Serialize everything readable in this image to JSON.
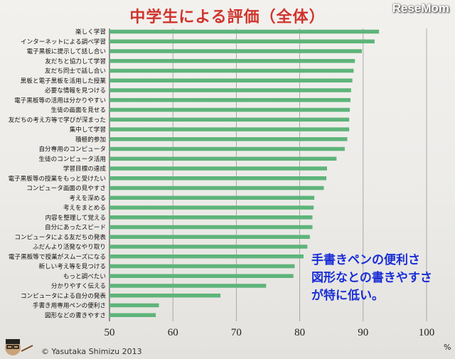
{
  "title": "中学生による評価（全体）",
  "brand": "ReseMom",
  "annotation": "手書きペンの便利さ\n図形なとの書きやすさ\nが特に低い。",
  "unit": "%",
  "copyright": "© Yasutaka Shimizu 2013",
  "colors": {
    "bar": "#5eb47a",
    "title": "#d0342c",
    "annotation": "#1a2fd6"
  },
  "chart_data": {
    "type": "bar",
    "orientation": "horizontal",
    "xlim": [
      50,
      100
    ],
    "ticks": [
      50,
      60,
      70,
      80,
      90,
      100
    ],
    "grid": true,
    "categories": [
      "楽しく学習",
      "インターネットによる調べ学習",
      "電子黒板に提示して話し合い",
      "友だちと協力して学習",
      "友だち同士で話し合い",
      "黒板と電子黒板を活用した授業",
      "必要な情報を見つける",
      "電子黒板等の活用は分かりやすい",
      "生徒の画面を見せる",
      "友だちの考え方等で学びが深まった",
      "集中して学習",
      "積極的参加",
      "自分専用のコンピュータ",
      "生徒のコンピュータ活用",
      "学習目標の達成",
      "電子黒板等の授業をもっと受けたい",
      "コンピュータ画面の見やすさ",
      "考えを深める",
      "考えをまとめる",
      "内容を整理して覚える",
      "自分にあったスピード",
      "コンピュータによる友だちの発表",
      "ふだんより活発なやり取り",
      "電子黒板等で授業がスムーズになる",
      "新しい考え等を見つける",
      "もっと調べたい",
      "分かりやすく伝える",
      "コンピュータによる自分の発表",
      "手書き用専用ペンの便利さ",
      "図形などの書きやすさ"
    ],
    "values": [
      92.5,
      91.8,
      89.8,
      88.7,
      88.5,
      88.3,
      88.1,
      88.0,
      87.9,
      87.8,
      87.8,
      87.5,
      87.1,
      85.8,
      84.3,
      84.2,
      83.8,
      82.3,
      82.2,
      82.0,
      82.0,
      81.6,
      81.2,
      80.6,
      79.2,
      79.0,
      74.7,
      67.5,
      57.8,
      57.3
    ]
  }
}
